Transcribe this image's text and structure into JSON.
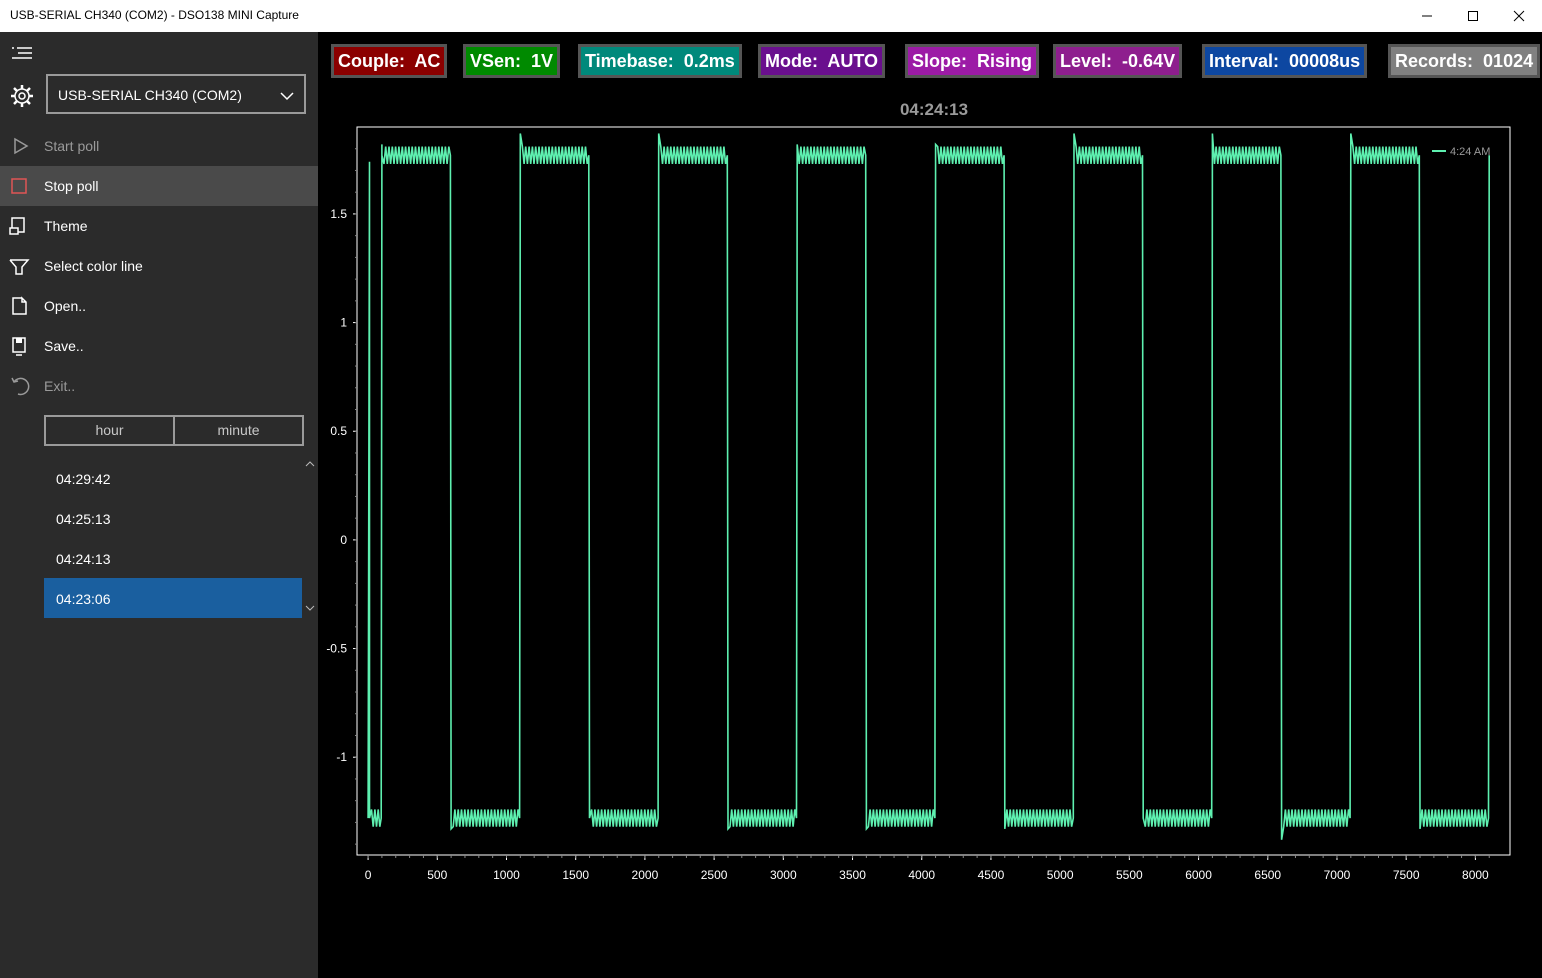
{
  "window": {
    "title": "USB-SERIAL CH340 (COM2) - DSO138 MINI Capture",
    "controls": [
      "minimize",
      "maximize",
      "close"
    ]
  },
  "sidebar": {
    "port_value": "USB-SERIAL CH340 (COM2)",
    "menu": [
      {
        "label": "Start poll",
        "icon": "play-icon",
        "state": "disabled"
      },
      {
        "label": "Stop poll",
        "icon": "stop-icon",
        "state": "active"
      },
      {
        "label": "Theme",
        "icon": "theme-icon",
        "state": "normal"
      },
      {
        "label": "Select  color line",
        "icon": "paint-icon",
        "state": "normal"
      },
      {
        "label": "Open..",
        "icon": "open-file-icon",
        "state": "normal"
      },
      {
        "label": "Save..",
        "icon": "save-icon",
        "state": "normal"
      },
      {
        "label": "Exit..",
        "icon": "undo-icon",
        "state": "disabled"
      }
    ],
    "segments": [
      "hour",
      "minute"
    ],
    "captures": [
      "04:29:42",
      "04:25:13",
      "04:24:13",
      "04:23:06"
    ],
    "selected_capture": "04:23:06"
  },
  "status_badges": [
    {
      "label": "Couple:",
      "value": "AC",
      "bg": "#8b0000"
    },
    {
      "label": "VSen:",
      "value": "1V",
      "bg": "#008a00"
    },
    {
      "label": "Timebase:",
      "value": "0.2ms",
      "bg": "#00897b"
    },
    {
      "label": "Mode:",
      "value": "AUTO",
      "bg": "#6a0f8e"
    },
    {
      "label": "Slope:",
      "value": "Rising",
      "bg": "#9c1ba6"
    },
    {
      "label": "Level:",
      "value": "-0.64V",
      "bg": "#8e1e8e"
    },
    {
      "label": "Interval:",
      "value": "00008us",
      "bg": "#0d47a1"
    },
    {
      "label": "Records:",
      "value": "01024",
      "bg": "#808080"
    }
  ],
  "chart_data": {
    "type": "line",
    "title": "04:24:13",
    "xlim": [
      -80,
      8250
    ],
    "ylim": [
      -1.45,
      1.9
    ],
    "x_ticks": [
      0,
      500,
      1000,
      1500,
      2000,
      2500,
      3000,
      3500,
      4000,
      4500,
      5000,
      5500,
      6000,
      6500,
      7000,
      7500,
      8000
    ],
    "y_ticks": [
      1.5,
      1,
      0.5,
      0,
      -0.5,
      -1
    ],
    "y_tick_labels": [
      "1.5",
      "1",
      "0.5",
      "0",
      "-0.5",
      "-1"
    ],
    "grid": false,
    "legend_position": "top-right",
    "series": [
      {
        "name": "4:24 AM",
        "color": "#5ef0b0",
        "high": 1.77,
        "low": -1.28,
        "edges": [
          [
            0,
            -1.28
          ],
          [
            10,
            1.74
          ],
          [
            10,
            -1.28
          ],
          [
            100,
            1.82
          ],
          [
            100,
            1.77
          ],
          [
            600,
            -1.33
          ],
          [
            1100,
            1.87
          ],
          [
            1600,
            -1.28
          ],
          [
            2100,
            1.87
          ],
          [
            2600,
            -1.33
          ],
          [
            3100,
            1.82
          ],
          [
            3600,
            -1.33
          ],
          [
            4100,
            1.82
          ],
          [
            4600,
            -1.33
          ],
          [
            5100,
            1.87
          ],
          [
            5600,
            -1.28
          ],
          [
            6100,
            1.87
          ],
          [
            6600,
            -1.38
          ],
          [
            7100,
            1.87
          ],
          [
            7600,
            -1.33
          ],
          [
            8100,
            1.77
          ]
        ]
      }
    ]
  }
}
